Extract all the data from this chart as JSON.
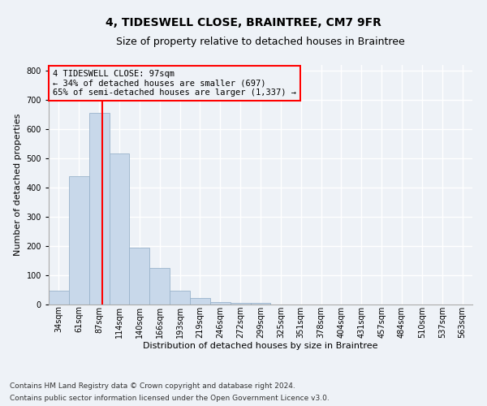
{
  "title": "4, TIDESWELL CLOSE, BRAINTREE, CM7 9FR",
  "subtitle": "Size of property relative to detached houses in Braintree",
  "xlabel": "Distribution of detached houses by size in Braintree",
  "ylabel": "Number of detached properties",
  "bar_labels": [
    "34sqm",
    "61sqm",
    "87sqm",
    "114sqm",
    "140sqm",
    "166sqm",
    "193sqm",
    "219sqm",
    "246sqm",
    "272sqm",
    "299sqm",
    "325sqm",
    "351sqm",
    "378sqm",
    "404sqm",
    "431sqm",
    "457sqm",
    "484sqm",
    "510sqm",
    "537sqm",
    "563sqm"
  ],
  "bar_values": [
    47,
    438,
    657,
    516,
    194,
    125,
    47,
    22,
    8,
    5,
    5,
    0,
    0,
    0,
    0,
    0,
    0,
    0,
    0,
    0,
    0
  ],
  "bar_color": "#c8d8ea",
  "bar_edgecolor": "#9ab4cc",
  "red_line_x": 2.15,
  "annotation_text": "4 TIDESWELL CLOSE: 97sqm\n← 34% of detached houses are smaller (697)\n65% of semi-detached houses are larger (1,337) →",
  "ylim": [
    0,
    820
  ],
  "yticks": [
    0,
    100,
    200,
    300,
    400,
    500,
    600,
    700,
    800
  ],
  "footnote1": "Contains HM Land Registry data © Crown copyright and database right 2024.",
  "footnote2": "Contains public sector information licensed under the Open Government Licence v3.0.",
  "background_color": "#eef2f7",
  "grid_color": "#ffffff",
  "title_fontsize": 10,
  "subtitle_fontsize": 9,
  "axis_label_fontsize": 8,
  "tick_fontsize": 7,
  "annotation_fontsize": 7.5,
  "footnote_fontsize": 6.5
}
